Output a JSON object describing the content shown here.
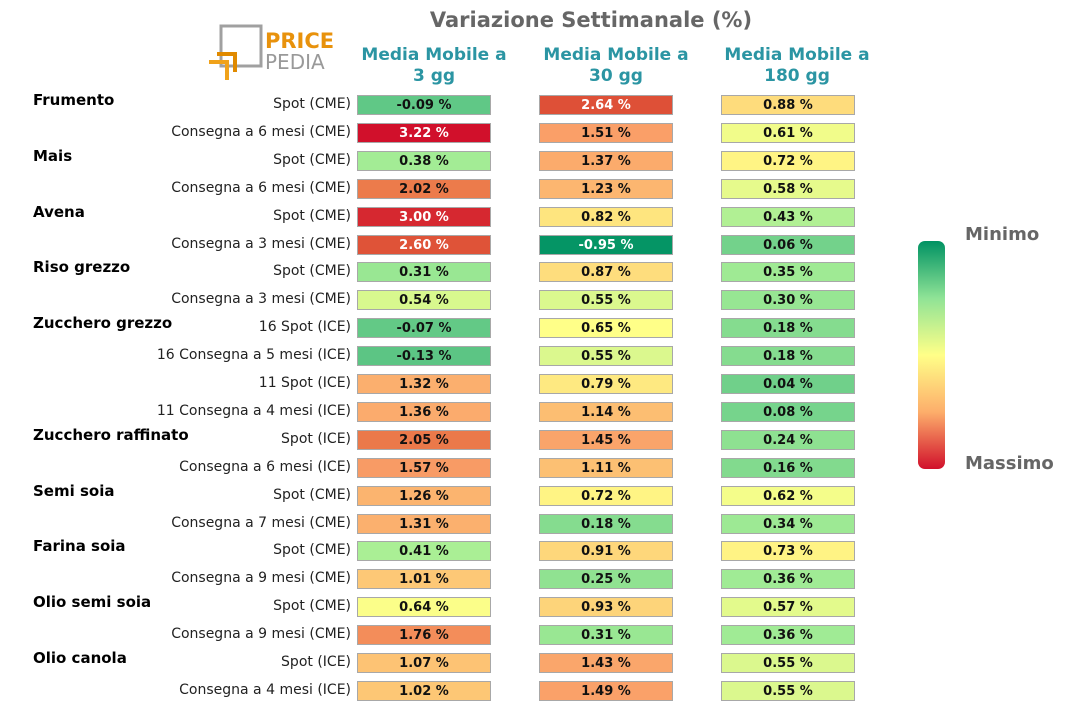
{
  "title": "Variazione Settimanale (%)",
  "logo": {
    "line1": "PRICE",
    "line2": "PEDIA"
  },
  "columns": [
    {
      "line1": "Media Mobile a",
      "line2": "3 gg"
    },
    {
      "line1": "Media Mobile a",
      "line2": "30 gg"
    },
    {
      "line1": "Media Mobile a",
      "line2": "180 gg"
    }
  ],
  "legend": {
    "top": "Minimo",
    "bottom": "Massimo"
  },
  "colors": {
    "min": "#009263",
    "mid": "#ffff88",
    "max": "#d1102b"
  },
  "chart_data": {
    "type": "heatmap",
    "title": "Variazione Settimanale (%)",
    "unit": "%",
    "columns": [
      "Media Mobile a 3 gg",
      "Media Mobile a 30 gg",
      "Media Mobile a 180 gg"
    ],
    "rows": [
      {
        "group": "Frumento",
        "label": "Spot (CME)",
        "values": [
          -0.09,
          2.64,
          0.88
        ]
      },
      {
        "group": "",
        "label": "Consegna a 6 mesi (CME)",
        "values": [
          3.22,
          1.51,
          0.61
        ]
      },
      {
        "group": "Mais",
        "label": "Spot (CME)",
        "values": [
          0.38,
          1.37,
          0.72
        ]
      },
      {
        "group": "",
        "label": "Consegna a 6 mesi (CME)",
        "values": [
          2.02,
          1.23,
          0.58
        ]
      },
      {
        "group": "Avena",
        "label": "Spot (CME)",
        "values": [
          3.0,
          0.82,
          0.43
        ]
      },
      {
        "group": "",
        "label": "Consegna a 3 mesi (CME)",
        "values": [
          2.6,
          -0.95,
          0.06
        ]
      },
      {
        "group": "Riso grezzo",
        "label": "Spot (CME)",
        "values": [
          0.31,
          0.87,
          0.35
        ]
      },
      {
        "group": "",
        "label": "Consegna a 3 mesi (CME)",
        "values": [
          0.54,
          0.55,
          0.3
        ]
      },
      {
        "group": "Zucchero grezzo",
        "label": "16 Spot (ICE)",
        "values": [
          -0.07,
          0.65,
          0.18
        ]
      },
      {
        "group": "",
        "label": "16 Consegna a 5 mesi (ICE)",
        "values": [
          -0.13,
          0.55,
          0.18
        ]
      },
      {
        "group": "",
        "label": "11 Spot (ICE)",
        "values": [
          1.32,
          0.79,
          0.04
        ]
      },
      {
        "group": "",
        "label": "11 Consegna a 4 mesi (ICE)",
        "values": [
          1.36,
          1.14,
          0.08
        ]
      },
      {
        "group": "Zucchero raffinato",
        "label": "Spot (ICE)",
        "values": [
          2.05,
          1.45,
          0.24
        ]
      },
      {
        "group": "",
        "label": "Consegna a 6 mesi (ICE)",
        "values": [
          1.57,
          1.11,
          0.16
        ]
      },
      {
        "group": "Semi soia",
        "label": "Spot (CME)",
        "values": [
          1.26,
          0.72,
          0.62
        ]
      },
      {
        "group": "",
        "label": "Consegna a 7 mesi (CME)",
        "values": [
          1.31,
          0.18,
          0.34
        ]
      },
      {
        "group": "Farina soia",
        "label": "Spot (CME)",
        "values": [
          0.41,
          0.91,
          0.73
        ]
      },
      {
        "group": "",
        "label": "Consegna a 9 mesi (CME)",
        "values": [
          1.01,
          0.25,
          0.36
        ]
      },
      {
        "group": "Olio semi soia",
        "label": "Spot (CME)",
        "values": [
          0.64,
          0.93,
          0.57
        ]
      },
      {
        "group": "",
        "label": "Consegna a 9 mesi (CME)",
        "values": [
          1.76,
          0.31,
          0.36
        ]
      },
      {
        "group": "Olio canola",
        "label": "Spot (ICE)",
        "values": [
          1.07,
          1.43,
          0.55
        ]
      },
      {
        "group": "",
        "label": "Consegna a 4 mesi (ICE)",
        "values": [
          1.02,
          1.49,
          0.55
        ]
      }
    ]
  }
}
